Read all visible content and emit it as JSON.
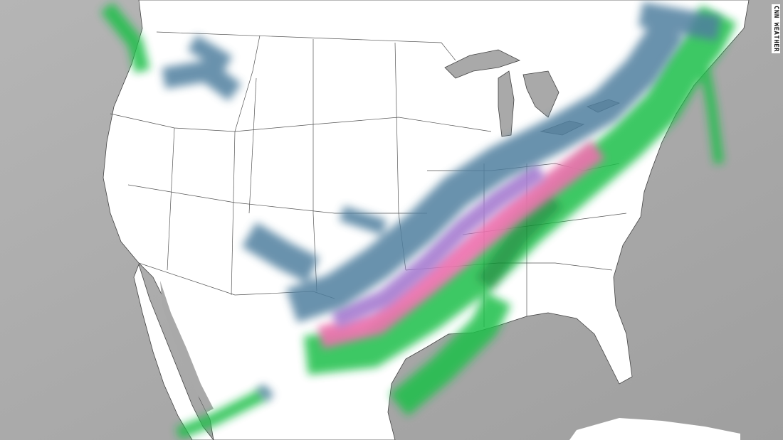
{
  "watermark": "CNN WEATHER",
  "colors": {
    "water": "#a9a9a9",
    "land": "#ffffff",
    "borders": "#555555",
    "snow": "#4f7f9f",
    "sleet": "#a57bd0",
    "freezing_rain": "#ef6fae",
    "rain": "#1fbf4a",
    "heavy_rain": "#0f8f33"
  }
}
